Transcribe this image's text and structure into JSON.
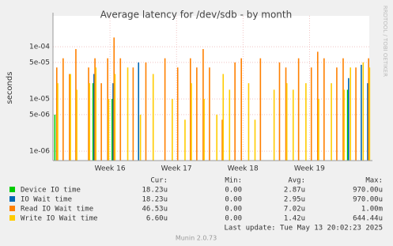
{
  "chart_data": {
    "type": "spike",
    "title": "Average latency for /dev/sdb - by month",
    "y_label": "seconds",
    "log_scale": true,
    "grid": true,
    "ylim": [
      6.6e-07,
      0.00039
    ],
    "yticks": [
      {
        "value": 1e-06,
        "label": "1e-06"
      },
      {
        "value": 5e-06,
        "label": "5e-06"
      },
      {
        "value": 1e-05,
        "label": "1e-05"
      },
      {
        "value": 5e-05,
        "label": "5e-05"
      },
      {
        "value": 0.0001,
        "label": "1e-04"
      }
    ],
    "xlim": [
      0,
      33.3
    ],
    "xticks": [
      {
        "value": 6,
        "label": "Week 16"
      },
      {
        "value": 13,
        "label": "Week 17"
      },
      {
        "value": 20,
        "label": "Week 18"
      },
      {
        "value": 27,
        "label": "Week 19"
      }
    ],
    "x": [
      0.3,
      0.97,
      1.64,
      2.31,
      2.98,
      3.65,
      4.32,
      4.99,
      5.66,
      6.33,
      7,
      7.67,
      8.34,
      9.01,
      9.68,
      10.35,
      11.02,
      11.69,
      12.36,
      13.03,
      13.7,
      14.37,
      15.04,
      15.71,
      16.38,
      17.05,
      17.72,
      18.39,
      19.06,
      19.73,
      20.4,
      21.07,
      21.74,
      22.41,
      23.08,
      23.75,
      24.42,
      25.09,
      25.76,
      26.43,
      27.1,
      27.77,
      28.44,
      29.11,
      29.78,
      30.45,
      31.12,
      31.79,
      32.46,
      33.13
    ],
    "legend_columns": [
      "Cur:",
      "Min:",
      "Avg:",
      "Max:"
    ],
    "series": [
      {
        "name": "Device IO time",
        "color": "#00cc00",
        "cur": "18.23u",
        "min": "0.00",
        "avg": "2.87u",
        "max": "970.00u",
        "values": [
          5e-06,
          null,
          null,
          null,
          null,
          null,
          2e-05,
          null,
          null,
          1e-05,
          null,
          null,
          null,
          null,
          null,
          null,
          null,
          null,
          null,
          null,
          null,
          null,
          null,
          null,
          null,
          null,
          null,
          null,
          null,
          null,
          null,
          null,
          null,
          null,
          null,
          null,
          null,
          null,
          null,
          null,
          null,
          null,
          null,
          null,
          null,
          null,
          1.5e-05,
          null,
          null,
          null
        ]
      },
      {
        "name": "IO Wait time",
        "color": "#0066b3",
        "cur": "18.23u",
        "min": "0.00",
        "avg": "2.95u",
        "max": "970.00u",
        "values": [
          null,
          null,
          null,
          null,
          null,
          null,
          3e-05,
          null,
          null,
          2e-05,
          null,
          null,
          null,
          5e-05,
          null,
          null,
          null,
          null,
          null,
          null,
          null,
          null,
          null,
          null,
          null,
          null,
          null,
          null,
          null,
          null,
          null,
          null,
          null,
          null,
          null,
          null,
          null,
          null,
          null,
          null,
          null,
          null,
          null,
          null,
          null,
          null,
          2.5e-05,
          null,
          4.5e-05,
          2e-05
        ]
      },
      {
        "name": "Read IO Wait time",
        "color": "#ff8000",
        "cur": "46.53u",
        "min": "0.00",
        "avg": "7.02u",
        "max": "1.00m",
        "values": [
          4e-05,
          6e-05,
          3e-05,
          9e-05,
          null,
          4e-05,
          6e-05,
          2e-05,
          6e-05,
          0.00015,
          6e-05,
          null,
          4e-05,
          null,
          5e-05,
          null,
          null,
          6e-05,
          null,
          4e-05,
          null,
          6e-05,
          4e-05,
          9e-05,
          4e-05,
          null,
          4e-06,
          null,
          5e-05,
          6e-05,
          null,
          null,
          6e-05,
          null,
          null,
          5e-05,
          4e-05,
          null,
          6e-05,
          null,
          4e-05,
          8e-05,
          6e-05,
          null,
          4e-05,
          6e-05,
          null,
          4e-05,
          null,
          6e-05
        ]
      },
      {
        "name": "Write IO Wait time",
        "color": "#ffcc00",
        "cur": "6.60u",
        "min": "0.00",
        "avg": "1.42u",
        "max": "644.44u",
        "values": [
          2e-05,
          null,
          3e-05,
          1.5e-05,
          null,
          2e-05,
          4e-05,
          null,
          1e-05,
          3e-05,
          null,
          4e-05,
          null,
          5e-06,
          null,
          3e-05,
          null,
          null,
          1e-05,
          null,
          4e-06,
          2e-05,
          null,
          1e-05,
          null,
          5e-06,
          3e-05,
          1.5e-05,
          null,
          null,
          2e-05,
          4e-06,
          null,
          null,
          1.5e-05,
          null,
          2e-05,
          1.5e-05,
          null,
          2e-05,
          null,
          1e-05,
          null,
          2e-05,
          null,
          1.5e-05,
          4e-05,
          null,
          5e-05,
          4e-05
        ]
      }
    ],
    "last_update": "Last update: Tue May 13 20:02:23 2025",
    "footer": "Munin 2.0.73",
    "watermark": "RRDTOOL / TOBI OETIKER"
  }
}
